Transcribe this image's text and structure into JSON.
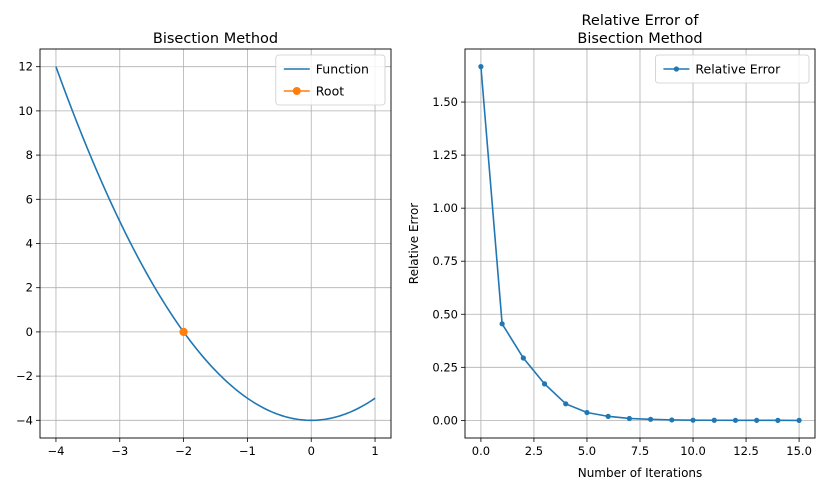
{
  "chart_data": [
    {
      "type": "line",
      "title": "Bisection Method",
      "xlabel": "",
      "ylabel": "",
      "xlim": [
        -4.25,
        1.25
      ],
      "ylim": [
        -4.8,
        12.8
      ],
      "xticks": [
        -4,
        -3,
        -2,
        -1,
        0,
        1
      ],
      "yticks": [
        -4,
        -2,
        0,
        2,
        4,
        6,
        8,
        10,
        12
      ],
      "grid": true,
      "legend_position": "top-right",
      "series": [
        {
          "name": "Function",
          "color": "#1f77b4",
          "function": "x^2 - 4",
          "x_range": [
            -4,
            1
          ]
        },
        {
          "name": "Root",
          "color": "#ff7f0e",
          "marker": "circle",
          "x": [
            -2
          ],
          "y": [
            0
          ]
        }
      ]
    },
    {
      "type": "line",
      "title": "Relative Error of\nBisection Method",
      "xlabel": "Number of Iterations",
      "ylabel": "Relative Error",
      "xlim": [
        -0.75,
        15.75
      ],
      "ylim": [
        -0.083,
        1.75
      ],
      "xticks": [
        0.0,
        2.5,
        5.0,
        7.5,
        10.0,
        12.5,
        15.0
      ],
      "xtick_labels": [
        "0.0",
        "2.5",
        "5.0",
        "7.5",
        "10.0",
        "12.5",
        "15.0"
      ],
      "yticks": [
        0.0,
        0.25,
        0.5,
        0.75,
        1.0,
        1.25,
        1.5
      ],
      "ytick_labels": [
        "0.00",
        "0.25",
        "0.50",
        "0.75",
        "1.00",
        "1.25",
        "1.50"
      ],
      "grid": true,
      "legend_position": "top-right",
      "series": [
        {
          "name": "Relative Error",
          "color": "#1f77b4",
          "marker": "dot",
          "x": [
            0,
            1,
            2,
            3,
            4,
            5,
            6,
            7,
            8,
            9,
            10,
            11,
            12,
            13,
            14,
            15
          ],
          "y": [
            1.667,
            0.455,
            0.294,
            0.172,
            0.078,
            0.037,
            0.019,
            0.009,
            0.005,
            0.002,
            0.001,
            0.0006,
            0.0003,
            0.0002,
            0.0001,
            0.0
          ]
        }
      ]
    }
  ]
}
